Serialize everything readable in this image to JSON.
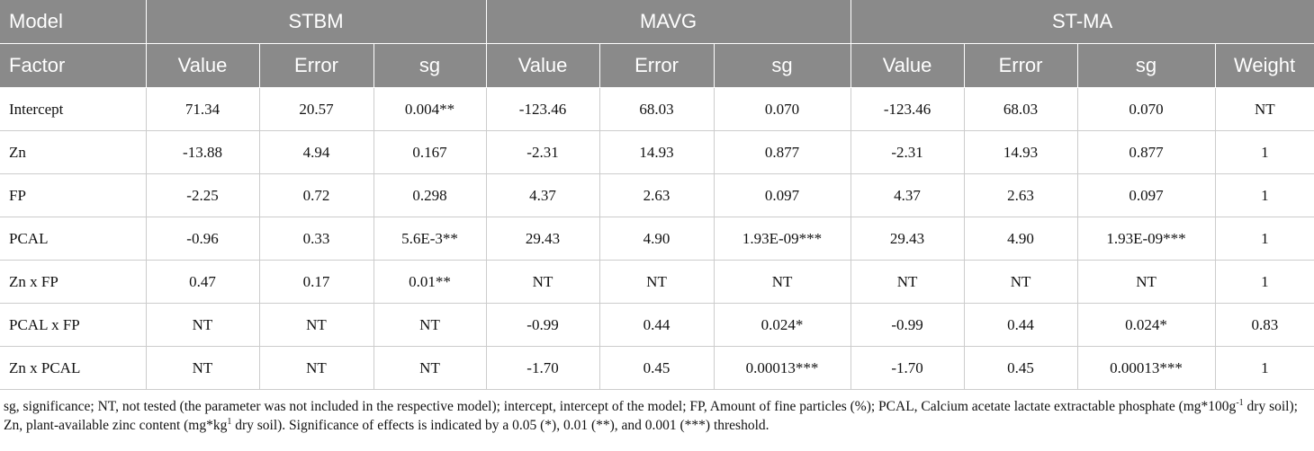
{
  "table": {
    "header": {
      "row1": [
        "Model",
        "STBM",
        "MAVG",
        "ST-MA"
      ],
      "row2": [
        "Factor",
        "Value",
        "Error",
        "sg",
        "Value",
        "Error",
        "sg",
        "Value",
        "Error",
        "sg",
        "Weight"
      ]
    },
    "rows": [
      [
        "Intercept",
        "71.34",
        "20.57",
        "0.004**",
        "-123.46",
        "68.03",
        "0.070",
        "-123.46",
        "68.03",
        "0.070",
        "NT"
      ],
      [
        "Zn",
        "-13.88",
        "4.94",
        "0.167",
        "-2.31",
        "14.93",
        "0.877",
        "-2.31",
        "14.93",
        "0.877",
        "1"
      ],
      [
        "FP",
        "-2.25",
        "0.72",
        "0.298",
        "4.37",
        "2.63",
        "0.097",
        "4.37",
        "2.63",
        "0.097",
        "1"
      ],
      [
        "PCAL",
        "-0.96",
        "0.33",
        "5.6E-3**",
        "29.43",
        "4.90",
        "1.93E-09***",
        "29.43",
        "4.90",
        "1.93E-09***",
        "1"
      ],
      [
        "Zn x FP",
        "0.47",
        "0.17",
        "0.01**",
        "NT",
        "NT",
        "NT",
        "NT",
        "NT",
        "NT",
        "1"
      ],
      [
        "PCAL x FP",
        "NT",
        "NT",
        "NT",
        "-0.99",
        "0.44",
        "0.024*",
        "-0.99",
        "0.44",
        "0.024*",
        "0.83"
      ],
      [
        "Zn x PCAL",
        "NT",
        "NT",
        "NT",
        "-1.70",
        "0.45",
        "0.00013***",
        "-1.70",
        "0.45",
        "0.00013***",
        "1"
      ]
    ],
    "footnote": [
      "sg, significance; NT, not tested (the parameter was not included in the respective model); intercept, intercept of the model; FP, Amount of fine particles (%); PCAL, Calcium acetate lactate extractable phosphate (mg*100g",
      "-1",
      " dry soil); Zn, plant-available zinc content (mg*kg",
      "1",
      " dry soil). Significance of effects is indicated by a 0.05 (*), 0.01 (**), and 0.001 (***) threshold."
    ]
  }
}
